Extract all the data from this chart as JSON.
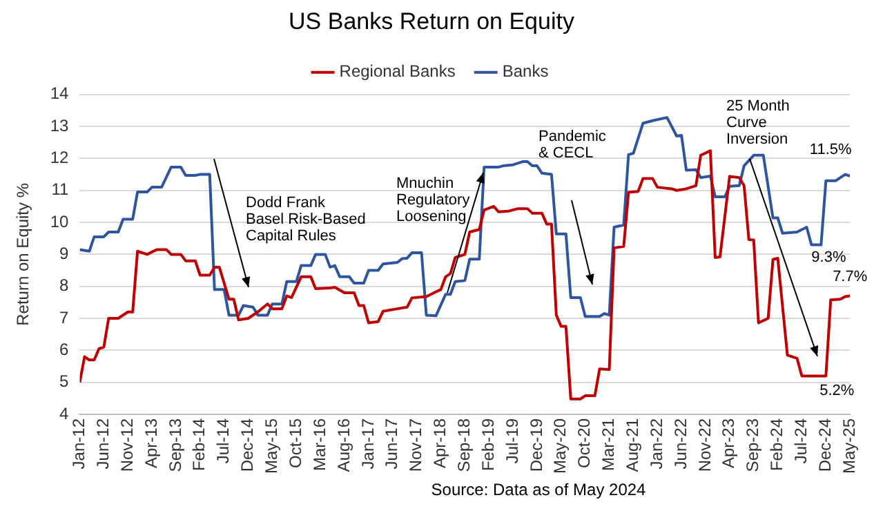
{
  "chart_data": {
    "type": "line",
    "title": "US Banks Return on Equity",
    "ylabel": "Return on Equity %",
    "legend": "top",
    "grid": "y",
    "marker": "none",
    "line_style": "solid",
    "xlim": [
      "2012-01",
      "2025-05"
    ],
    "xticks": [
      {
        "value": "2012-01",
        "label": "Jan-12"
      },
      {
        "value": "2012-06",
        "label": "Jun-12"
      },
      {
        "value": "2012-11",
        "label": "Nov-12"
      },
      {
        "value": "2013-04",
        "label": "Apr-13"
      },
      {
        "value": "2013-09",
        "label": "Sep-13"
      },
      {
        "value": "2014-02",
        "label": "Feb-14"
      },
      {
        "value": "2014-07",
        "label": "Jul-14"
      },
      {
        "value": "2014-12",
        "label": "Dec-14"
      },
      {
        "value": "2015-05",
        "label": "May-15"
      },
      {
        "value": "2015-10",
        "label": "Oct-15"
      },
      {
        "value": "2016-03",
        "label": "Mar-16"
      },
      {
        "value": "2016-08",
        "label": "Aug-16"
      },
      {
        "value": "2017-01",
        "label": "Jan-17"
      },
      {
        "value": "2017-06",
        "label": "Jun-17"
      },
      {
        "value": "2017-11",
        "label": "Nov-17"
      },
      {
        "value": "2018-04",
        "label": "Apr-18"
      },
      {
        "value": "2018-09",
        "label": "Sep-18"
      },
      {
        "value": "2019-02",
        "label": "Feb-19"
      },
      {
        "value": "2019-07",
        "label": "Jul-19"
      },
      {
        "value": "2019-12",
        "label": "Dec-19"
      },
      {
        "value": "2020-05",
        "label": "May-20"
      },
      {
        "value": "2020-10",
        "label": "Oct-20"
      },
      {
        "value": "2021-03",
        "label": "Mar-21"
      },
      {
        "value": "2021-08",
        "label": "Aug-21"
      },
      {
        "value": "2022-01",
        "label": "Jan-22"
      },
      {
        "value": "2022-06",
        "label": "Jun-22"
      },
      {
        "value": "2022-11",
        "label": "Nov-22"
      },
      {
        "value": "2023-04",
        "label": "Apr-23"
      },
      {
        "value": "2023-09",
        "label": "Sep-23"
      },
      {
        "value": "2024-02",
        "label": "Feb-24"
      },
      {
        "value": "2024-07",
        "label": "Jul-24"
      },
      {
        "value": "2024-12",
        "label": "Dec-24"
      },
      {
        "value": "2025-05",
        "label": "May-25"
      }
    ],
    "ylim": [
      4,
      14
    ],
    "yticks": [
      4,
      5,
      6,
      7,
      8,
      9,
      10,
      11,
      12,
      13,
      14
    ],
    "series": [
      {
        "name": "Regional Banks",
        "color": "#c00000",
        "x": [
          "2012-01",
          "2012-02",
          "2012-03",
          "2012-04",
          "2012-05",
          "2012-06",
          "2012-07",
          "2012-09",
          "2012-11",
          "2012-12",
          "2013-01",
          "2013-03",
          "2013-05",
          "2013-07",
          "2013-08",
          "2013-10",
          "2013-11",
          "2014-01",
          "2014-02",
          "2014-04",
          "2014-05",
          "2014-06",
          "2014-08",
          "2014-09",
          "2014-10",
          "2014-12",
          "2015-02",
          "2015-04",
          "2015-05",
          "2015-07",
          "2015-08",
          "2015-09",
          "2015-11",
          "2016-01",
          "2016-02",
          "2016-05",
          "2016-06",
          "2016-08",
          "2016-10",
          "2016-11",
          "2016-12",
          "2017-01",
          "2017-03",
          "2017-04",
          "2017-07",
          "2017-09",
          "2017-10",
          "2018-01",
          "2018-03",
          "2018-04",
          "2018-05",
          "2018-06",
          "2018-07",
          "2018-09",
          "2018-10",
          "2018-12",
          "2019-01",
          "2019-03",
          "2019-04",
          "2019-06",
          "2019-08",
          "2019-10",
          "2019-11",
          "2020-01",
          "2020-02",
          "2020-03",
          "2020-04",
          "2020-05",
          "2020-06",
          "2020-07",
          "2020-09",
          "2020-10",
          "2020-12",
          "2021-01",
          "2021-03",
          "2021-04",
          "2021-06",
          "2021-07",
          "2021-09",
          "2021-10",
          "2021-12",
          "2022-01",
          "2022-04",
          "2022-05",
          "2022-07",
          "2022-09",
          "2022-10",
          "2022-12",
          "2023-01",
          "2023-02",
          "2023-04",
          "2023-06",
          "2023-07",
          "2023-08",
          "2023-09",
          "2023-10",
          "2023-12",
          "2024-01",
          "2024-02",
          "2024-04",
          "2024-06",
          "2024-07",
          "2024-10",
          "2024-11",
          "2024-12",
          "2025-01",
          "2025-03",
          "2025-04",
          "2025-05"
        ],
        "values": [
          5.0,
          5.8,
          5.7,
          5.7,
          6.05,
          6.1,
          7.0,
          7.0,
          7.2,
          7.2,
          9.1,
          9.0,
          9.15,
          9.15,
          9.0,
          9.0,
          8.8,
          8.8,
          8.35,
          8.35,
          8.6,
          8.6,
          7.6,
          7.6,
          6.95,
          7.0,
          7.2,
          7.45,
          7.3,
          7.3,
          7.7,
          7.65,
          8.3,
          8.3,
          7.93,
          7.95,
          7.97,
          7.8,
          7.8,
          7.4,
          7.4,
          6.86,
          6.9,
          7.22,
          7.3,
          7.35,
          7.64,
          7.68,
          7.83,
          7.9,
          8.3,
          8.4,
          8.9,
          9.0,
          9.7,
          9.78,
          10.39,
          10.5,
          10.33,
          10.35,
          10.43,
          10.43,
          10.29,
          10.29,
          9.95,
          9.95,
          7.1,
          6.75,
          6.75,
          4.48,
          4.48,
          4.58,
          4.58,
          5.42,
          5.4,
          9.2,
          9.25,
          10.94,
          10.97,
          11.37,
          11.37,
          11.1,
          11.05,
          11.0,
          11.05,
          11.15,
          12.1,
          12.24,
          8.9,
          8.92,
          11.44,
          11.4,
          11.15,
          9.46,
          9.45,
          6.86,
          7.0,
          8.84,
          8.88,
          5.85,
          5.75,
          5.2,
          5.2,
          5.2,
          5.2,
          7.58,
          7.6,
          7.68,
          7.7
        ]
      },
      {
        "name": "Banks",
        "color": "#2f55a0",
        "x": [
          "2012-01",
          "2012-03",
          "2012-04",
          "2012-06",
          "2012-07",
          "2012-09",
          "2012-10",
          "2012-12",
          "2013-01",
          "2013-03",
          "2013-04",
          "2013-06",
          "2013-08",
          "2013-10",
          "2013-11",
          "2014-01",
          "2014-02",
          "2014-04",
          "2014-05",
          "2014-07",
          "2014-08",
          "2014-10",
          "2014-11",
          "2015-01",
          "2015-02",
          "2015-04",
          "2015-05",
          "2015-07",
          "2015-08",
          "2015-10",
          "2015-11",
          "2016-01",
          "2016-02",
          "2016-04",
          "2016-05",
          "2016-06",
          "2016-07",
          "2016-09",
          "2016-10",
          "2016-12",
          "2017-01",
          "2017-03",
          "2017-04",
          "2017-07",
          "2017-08",
          "2017-09",
          "2017-10",
          "2017-12",
          "2018-01",
          "2018-03",
          "2018-05",
          "2018-06",
          "2018-07",
          "2018-09",
          "2018-10",
          "2018-12",
          "2019-01",
          "2019-04",
          "2019-05",
          "2019-07",
          "2019-09",
          "2019-10",
          "2019-11",
          "2019-12",
          "2020-01",
          "2020-03",
          "2020-04",
          "2020-06",
          "2020-07",
          "2020-09",
          "2020-10",
          "2021-01",
          "2021-02",
          "2021-03",
          "2021-04",
          "2021-06",
          "2021-07",
          "2021-08",
          "2021-10",
          "2021-12",
          "2022-03",
          "2022-05",
          "2022-06",
          "2022-07",
          "2022-09",
          "2022-10",
          "2022-12",
          "2023-01",
          "2023-03",
          "2023-04",
          "2023-06",
          "2023-07",
          "2023-09",
          "2023-11",
          "2024-01",
          "2024-02",
          "2024-03",
          "2024-06",
          "2024-08",
          "2024-09",
          "2024-11",
          "2024-12",
          "2025-02",
          "2025-04",
          "2025-05"
        ],
        "values": [
          9.15,
          9.1,
          9.55,
          9.55,
          9.7,
          9.7,
          10.1,
          10.1,
          10.95,
          10.95,
          11.1,
          11.1,
          11.73,
          11.73,
          11.47,
          11.47,
          11.5,
          11.5,
          7.9,
          7.9,
          7.1,
          7.1,
          7.4,
          7.35,
          7.1,
          7.1,
          7.45,
          7.45,
          8.15,
          8.15,
          8.65,
          8.65,
          9.0,
          9.0,
          8.6,
          8.65,
          8.3,
          8.3,
          8.1,
          8.1,
          8.5,
          8.5,
          8.7,
          8.75,
          8.87,
          8.88,
          9.05,
          9.05,
          7.1,
          7.08,
          7.75,
          7.75,
          8.15,
          8.18,
          8.85,
          8.85,
          11.73,
          11.73,
          11.77,
          11.8,
          11.9,
          11.9,
          11.77,
          11.77,
          11.54,
          11.5,
          9.64,
          9.64,
          7.65,
          7.65,
          7.06,
          7.06,
          7.15,
          7.1,
          9.85,
          9.92,
          12.12,
          12.16,
          13.1,
          13.18,
          13.28,
          12.7,
          12.72,
          11.63,
          11.65,
          11.4,
          11.45,
          10.8,
          10.8,
          11.13,
          11.15,
          11.77,
          12.1,
          12.1,
          10.14,
          10.14,
          9.66,
          9.7,
          9.85,
          9.3,
          9.3,
          11.3,
          11.3,
          11.5,
          11.45
        ]
      }
    ],
    "annotations": [
      "Dodd Frank\nBasel Risk-Based\nCapital Rules",
      "Mnuchin\nRegulatory\nLoosening",
      "Pandemic\n& CECL",
      "25 Month\nCurve\nInversion",
      {
        "text": "11.5%",
        "x": "2025-05",
        "y": 11.5
      },
      {
        "text": "9.3%",
        "x": "2024-10",
        "y": 9.3
      },
      {
        "text": "7.7%",
        "x": "2025-05",
        "y": 7.7
      },
      {
        "text": "5.2%",
        "x": "2024-12",
        "y": 5.2
      },
      "Source: Data as of May 2024"
    ]
  }
}
